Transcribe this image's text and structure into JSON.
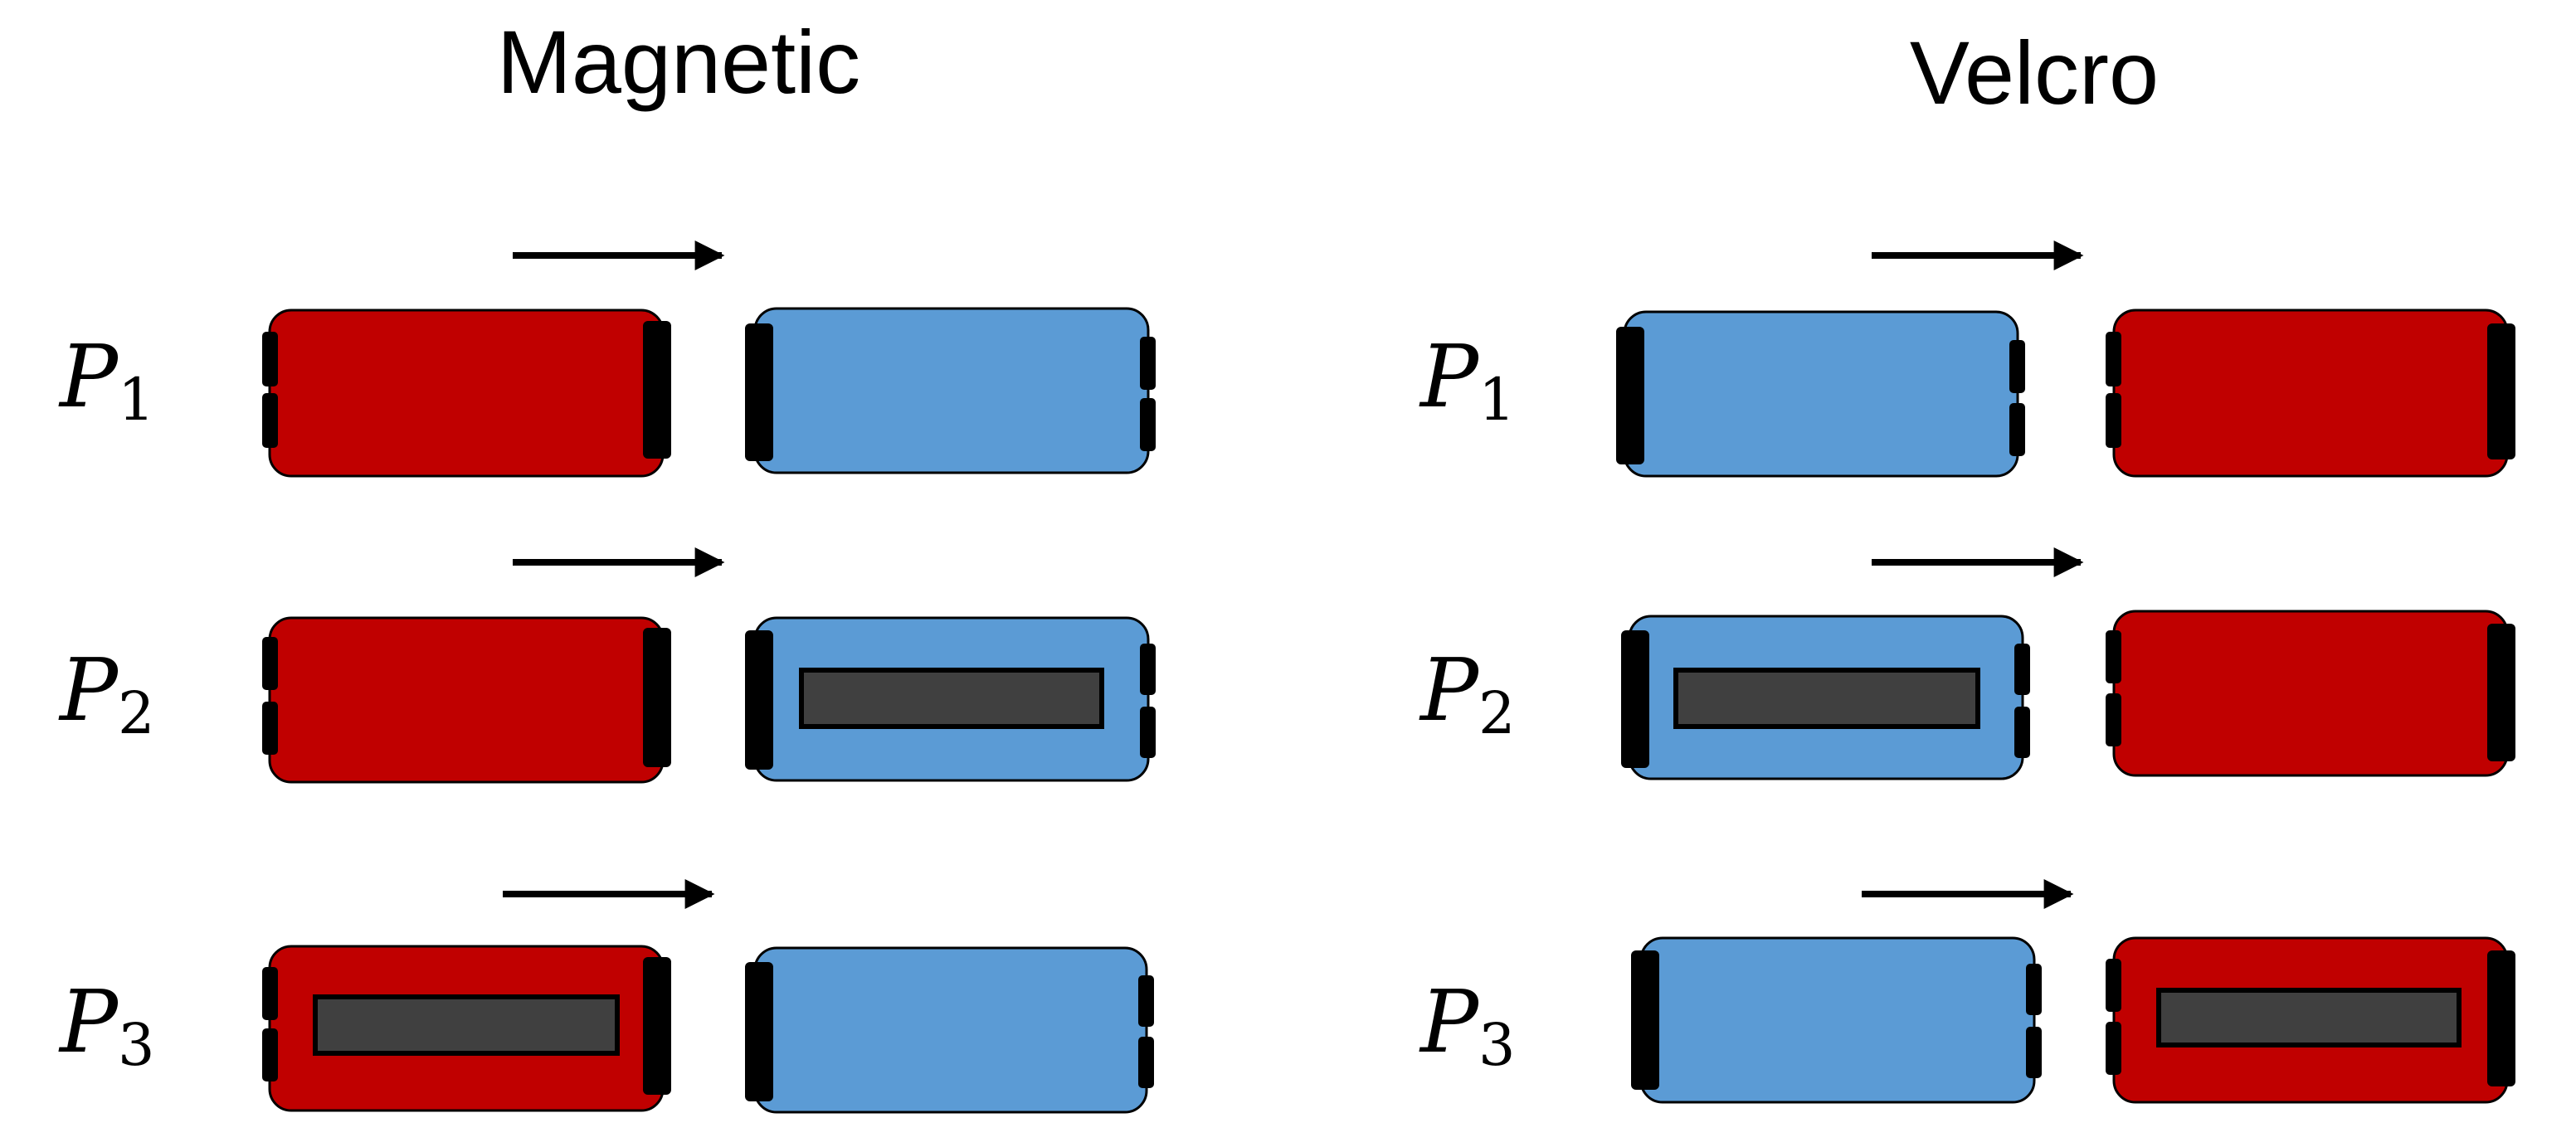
{
  "titles": {
    "left": "Magnetic",
    "right": "Velcro"
  },
  "rows": [
    {
      "label": "P",
      "subscript": "1"
    },
    {
      "label": "P",
      "subscript": "2"
    },
    {
      "label": "P",
      "subscript": "3"
    }
  ],
  "colors": {
    "red": "#c00000",
    "blue": "#5b9bd5",
    "slot": "#404040"
  }
}
